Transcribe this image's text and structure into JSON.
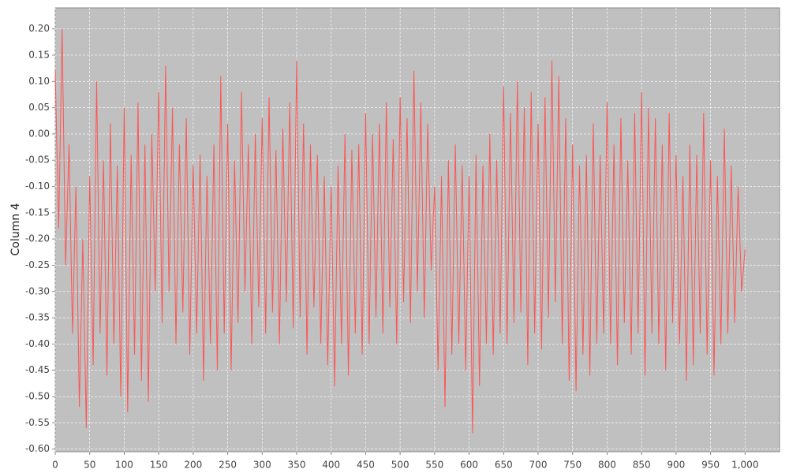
{
  "chart_data": {
    "type": "line",
    "y_label": "Column 4",
    "x": [
      0,
      5,
      10,
      15,
      20,
      25,
      30,
      35,
      40,
      45,
      50,
      55,
      60,
      65,
      70,
      75,
      80,
      85,
      90,
      95,
      100,
      105,
      110,
      115,
      120,
      125,
      130,
      135,
      140,
      145,
      150,
      155,
      160,
      165,
      170,
      175,
      180,
      185,
      190,
      195,
      200,
      205,
      210,
      215,
      220,
      225,
      230,
      235,
      240,
      245,
      250,
      255,
      260,
      265,
      270,
      275,
      280,
      285,
      290,
      295,
      300,
      305,
      310,
      315,
      320,
      325,
      330,
      335,
      340,
      345,
      350,
      355,
      360,
      365,
      370,
      375,
      380,
      385,
      390,
      395,
      400,
      405,
      410,
      415,
      420,
      425,
      430,
      435,
      440,
      445,
      450,
      455,
      460,
      465,
      470,
      475,
      480,
      485,
      490,
      495,
      500,
      505,
      510,
      515,
      520,
      525,
      530,
      535,
      540,
      545,
      550,
      555,
      560,
      565,
      570,
      575,
      580,
      585,
      590,
      595,
      600,
      605,
      610,
      615,
      620,
      625,
      630,
      635,
      640,
      645,
      650,
      655,
      660,
      665,
      670,
      675,
      680,
      685,
      690,
      695,
      700,
      705,
      710,
      715,
      720,
      725,
      730,
      735,
      740,
      745,
      750,
      755,
      760,
      765,
      770,
      775,
      780,
      785,
      790,
      795,
      800,
      805,
      810,
      815,
      820,
      825,
      830,
      835,
      840,
      845,
      850,
      855,
      860,
      865,
      870,
      875,
      880,
      885,
      890,
      895,
      900,
      905,
      910,
      915,
      920,
      925,
      930,
      935,
      940,
      945,
      950,
      955,
      960,
      965,
      970,
      975,
      980,
      985,
      990,
      995,
      1000
    ],
    "series": [
      {
        "name": "Column 4",
        "color": "#ff5555",
        "values": [
          0.12,
          -0.18,
          0.2,
          -0.25,
          -0.02,
          -0.38,
          -0.1,
          -0.52,
          -0.2,
          -0.56,
          -0.08,
          -0.44,
          0.1,
          -0.38,
          -0.05,
          -0.46,
          0.02,
          -0.4,
          -0.06,
          -0.5,
          0.05,
          -0.53,
          -0.04,
          -0.42,
          0.06,
          -0.47,
          -0.02,
          -0.51,
          0.0,
          -0.3,
          0.08,
          -0.36,
          0.13,
          -0.3,
          0.05,
          -0.4,
          -0.02,
          -0.34,
          0.03,
          -0.42,
          -0.06,
          -0.38,
          -0.04,
          -0.47,
          -0.08,
          -0.4,
          -0.02,
          -0.45,
          0.11,
          -0.38,
          0.02,
          -0.45,
          -0.05,
          -0.36,
          0.08,
          -0.3,
          -0.02,
          -0.4,
          0.0,
          -0.33,
          0.03,
          -0.38,
          0.07,
          -0.34,
          -0.03,
          -0.4,
          0.01,
          -0.32,
          0.06,
          -0.37,
          0.14,
          -0.35,
          0.02,
          -0.42,
          -0.02,
          -0.33,
          -0.04,
          -0.4,
          -0.08,
          -0.44,
          -0.1,
          -0.48,
          -0.06,
          -0.4,
          0.0,
          -0.46,
          -0.03,
          -0.38,
          -0.02,
          -0.42,
          0.04,
          -0.4,
          0.0,
          -0.35,
          0.02,
          -0.38,
          0.06,
          -0.33,
          -0.01,
          -0.4,
          0.07,
          -0.32,
          0.03,
          -0.36,
          0.12,
          -0.3,
          0.06,
          -0.35,
          0.02,
          -0.26,
          -0.1,
          -0.45,
          -0.08,
          -0.52,
          -0.05,
          -0.42,
          -0.02,
          -0.4,
          -0.06,
          -0.45,
          -0.08,
          -0.57,
          -0.04,
          -0.48,
          -0.06,
          -0.4,
          0.0,
          -0.42,
          -0.05,
          -0.38,
          0.09,
          -0.4,
          0.04,
          -0.36,
          0.1,
          -0.34,
          0.05,
          -0.44,
          0.08,
          -0.38,
          0.02,
          -0.41,
          0.07,
          -0.35,
          0.14,
          -0.32,
          0.11,
          -0.4,
          0.03,
          -0.47,
          -0.02,
          -0.49,
          -0.06,
          -0.42,
          -0.04,
          -0.46,
          0.02,
          -0.4,
          -0.04,
          -0.38,
          0.06,
          -0.4,
          -0.02,
          -0.44,
          0.03,
          -0.36,
          -0.05,
          -0.42,
          0.04,
          -0.38,
          0.08,
          -0.46,
          0.05,
          -0.38,
          0.03,
          -0.4,
          -0.02,
          -0.45,
          0.04,
          -0.36,
          -0.04,
          -0.4,
          -0.08,
          -0.47,
          -0.02,
          -0.44,
          -0.04,
          -0.38,
          0.04,
          -0.42,
          -0.05,
          -0.46,
          -0.08,
          -0.4,
          0.01,
          -0.38,
          -0.06,
          -0.36,
          -0.1,
          -0.3,
          -0.22
        ]
      }
    ],
    "xlim": [
      0,
      1050
    ],
    "ylim": [
      -0.605,
      0.24
    ],
    "xticks": [
      0,
      50,
      100,
      150,
      200,
      250,
      300,
      350,
      400,
      450,
      500,
      550,
      600,
      650,
      700,
      750,
      800,
      850,
      900,
      950,
      {
        "value": 1000,
        "label": "1,000"
      }
    ],
    "yticks": [
      {
        "value": 0.2,
        "label": "0.20"
      },
      0.15,
      {
        "value": 0.1,
        "label": "0.10"
      },
      0.05,
      {
        "value": 0,
        "label": "0.00"
      },
      -0.05,
      {
        "value": -0.1,
        "label": "-0.10"
      },
      -0.15,
      {
        "value": -0.2,
        "label": "-0.20"
      },
      -0.25,
      {
        "value": -0.3,
        "label": "-0.30"
      },
      -0.35,
      {
        "value": -0.4,
        "label": "-0.40"
      },
      -0.45,
      {
        "value": -0.5,
        "label": "-0.50"
      },
      -0.55,
      {
        "value": -0.6,
        "label": "-0.60"
      }
    ],
    "grid": true,
    "background": "#c0c0c0"
  }
}
